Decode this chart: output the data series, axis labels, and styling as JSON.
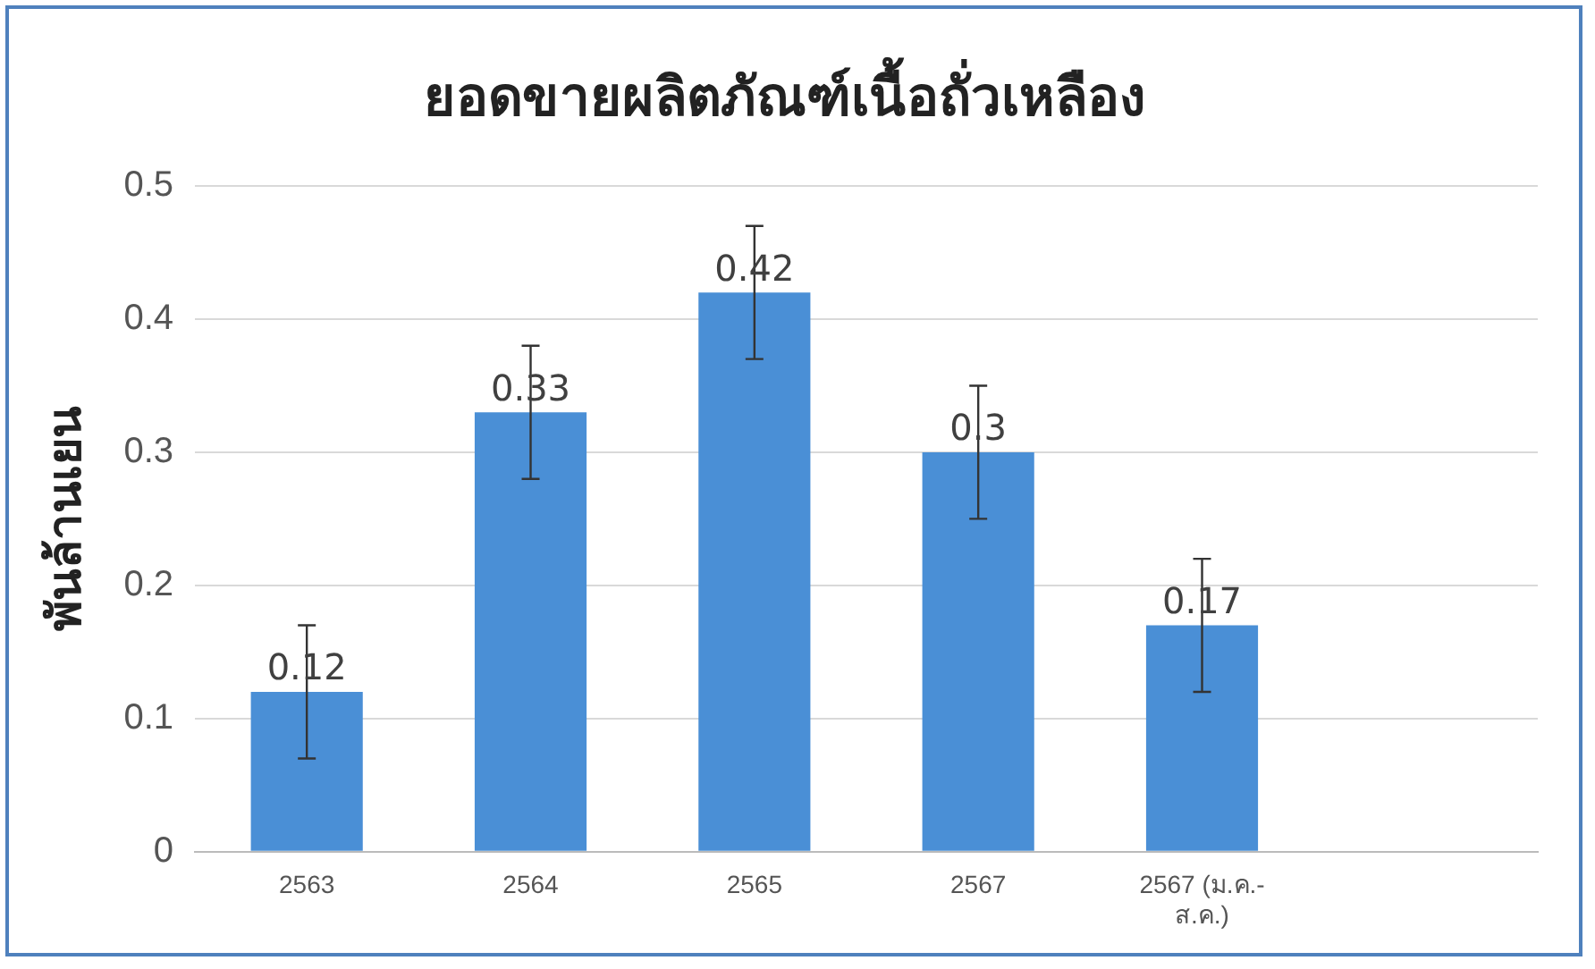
{
  "chart_data": {
    "type": "bar",
    "title": "ยอดขายผลิตภัณฑ์เนื้อถั่วเหลือง",
    "ylabel": "พันล้านเยน",
    "categories": [
      "2563",
      "2564",
      "2565",
      "2567",
      "2567 (ม.ค.-ส.ค.)",
      null
    ],
    "values": [
      0.12,
      0.33,
      0.42,
      0.3,
      0.17,
      null
    ],
    "errors": [
      0.05,
      0.05,
      0.05,
      0.05,
      0.05,
      null
    ],
    "color": "#4a8fd6",
    "ylim": [
      0,
      0.5
    ],
    "yticks": [
      0,
      0.1,
      0.2,
      0.3,
      0.4,
      0.5
    ],
    "grid": "y",
    "data_labels": true,
    "legend": false
  }
}
